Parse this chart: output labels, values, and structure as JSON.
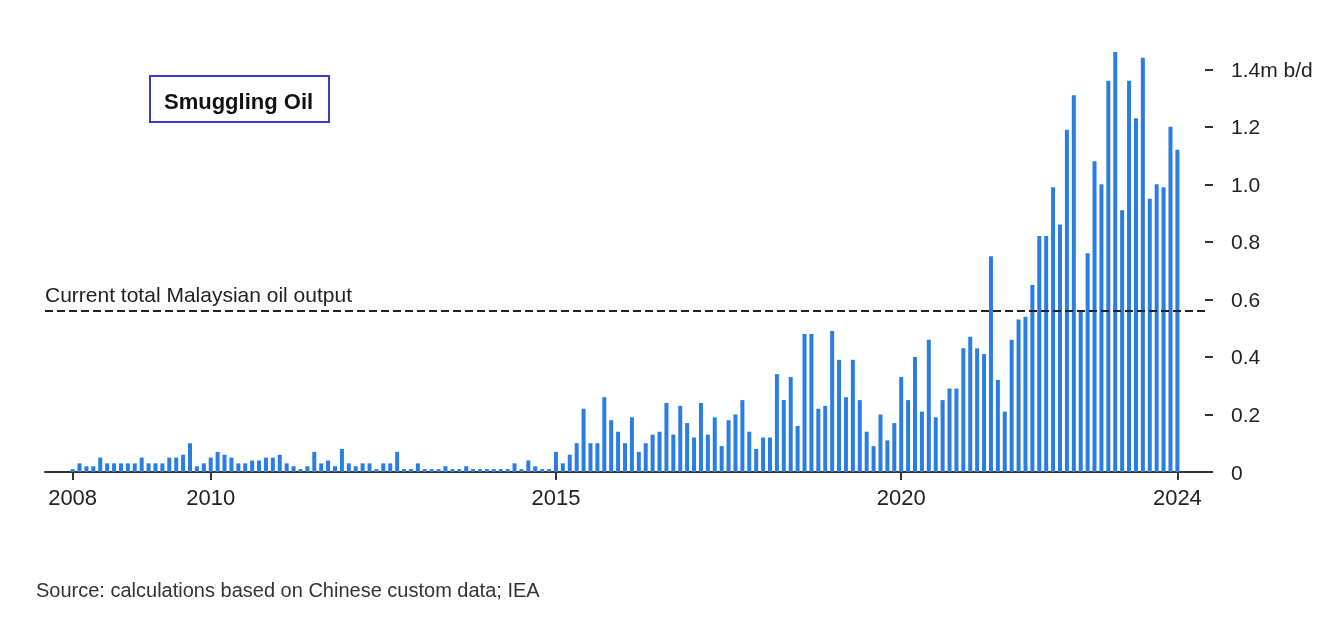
{
  "chart_data": {
    "type": "bar",
    "title": "Smuggling Oil",
    "annotations": [
      "Source: calculations based on Chinese custom data; IEA"
    ],
    "x": [
      2008,
      2008.1,
      2008.2,
      2008.3,
      2008.4,
      2008.5,
      2008.6,
      2008.7,
      2008.8,
      2008.9,
      2009,
      2009.1,
      2009.2,
      2009.3,
      2009.4,
      2009.5,
      2009.6,
      2009.7,
      2009.8,
      2009.9,
      2010,
      2010.1,
      2010.2,
      2010.3,
      2010.4,
      2010.5,
      2010.6,
      2010.7,
      2010.8,
      2010.9,
      2011,
      2011.1,
      2011.2,
      2011.3,
      2011.4,
      2011.5,
      2011.6,
      2011.7,
      2011.8,
      2011.9,
      2012,
      2012.1,
      2012.2,
      2012.3,
      2012.4,
      2012.5,
      2012.6,
      2012.7,
      2012.8,
      2012.9,
      2013,
      2013.1,
      2013.2,
      2013.3,
      2013.4,
      2013.5,
      2013.6,
      2013.7,
      2013.8,
      2013.9,
      2014,
      2014.1,
      2014.2,
      2014.3,
      2014.4,
      2014.5,
      2014.6,
      2014.7,
      2014.8,
      2014.9,
      2015,
      2015.1,
      2015.2,
      2015.3,
      2015.4,
      2015.5,
      2015.6,
      2015.7,
      2015.8,
      2015.9,
      2016,
      2016.1,
      2016.2,
      2016.3,
      2016.4,
      2016.5,
      2016.6,
      2016.7,
      2016.8,
      2016.9,
      2017,
      2017.1,
      2017.2,
      2017.3,
      2017.4,
      2017.5,
      2017.6,
      2017.7,
      2017.8,
      2017.9,
      2018,
      2018.1,
      2018.2,
      2018.3,
      2018.4,
      2018.5,
      2018.6,
      2018.7,
      2018.8,
      2018.9,
      2019,
      2019.1,
      2019.2,
      2019.3,
      2019.4,
      2019.5,
      2019.6,
      2019.7,
      2019.8,
      2019.9,
      2020,
      2020.1,
      2020.2,
      2020.3,
      2020.4,
      2020.5,
      2020.6,
      2020.7,
      2020.8,
      2020.9,
      2021,
      2021.1,
      2021.2,
      2021.3,
      2021.4,
      2021.5,
      2021.6,
      2021.7,
      2021.8,
      2021.9,
      2022,
      2022.1,
      2022.2,
      2022.3,
      2022.4,
      2022.5,
      2022.6,
      2022.7,
      2022.8,
      2022.9,
      2023,
      2023.1,
      2023.2,
      2023.3,
      2023.4,
      2023.5,
      2023.6,
      2023.7,
      2023.8,
      2023.9,
      2024
    ],
    "values": [
      0.01,
      0.03,
      0.02,
      0.02,
      0.05,
      0.03,
      0.03,
      0.03,
      0.03,
      0.03,
      0.05,
      0.03,
      0.03,
      0.03,
      0.05,
      0.05,
      0.06,
      0.1,
      0.02,
      0.03,
      0.05,
      0.07,
      0.06,
      0.05,
      0.03,
      0.03,
      0.04,
      0.04,
      0.05,
      0.05,
      0.06,
      0.03,
      0.02,
      0.01,
      0.02,
      0.07,
      0.03,
      0.04,
      0.02,
      0.08,
      0.03,
      0.02,
      0.03,
      0.03,
      0.01,
      0.03,
      0.03,
      0.07,
      0.01,
      0.01,
      0.03,
      0.01,
      0.01,
      0.01,
      0.02,
      0.01,
      0.01,
      0.02,
      0.01,
      0.01,
      0.01,
      0.01,
      0.01,
      0.01,
      0.03,
      0.01,
      0.04,
      0.02,
      0.01,
      0.01,
      0.07,
      0.03,
      0.06,
      0.1,
      0.22,
      0.1,
      0.1,
      0.26,
      0.18,
      0.14,
      0.1,
      0.19,
      0.07,
      0.1,
      0.13,
      0.14,
      0.24,
      0.13,
      0.23,
      0.17,
      0.12,
      0.24,
      0.13,
      0.19,
      0.09,
      0.18,
      0.2,
      0.25,
      0.14,
      0.08,
      0.12,
      0.12,
      0.34,
      0.25,
      0.33,
      0.16,
      0.48,
      0.48,
      0.22,
      0.23,
      0.49,
      0.39,
      0.26,
      0.39,
      0.25,
      0.14,
      0.09,
      0.2,
      0.11,
      0.17,
      0.33,
      0.25,
      0.4,
      0.21,
      0.46,
      0.19,
      0.25,
      0.29,
      0.29,
      0.43,
      0.47,
      0.43,
      0.41,
      0.75,
      0.32,
      0.21,
      0.46,
      0.53,
      0.54,
      0.65,
      0.82,
      0.82,
      0.99,
      0.86,
      1.19,
      1.31,
      0.56,
      0.76,
      1.08,
      1.0,
      1.36,
      1.46,
      0.91,
      1.36,
      1.23,
      1.44,
      0.95,
      1.0,
      0.99,
      1.2,
      1.12
    ],
    "color": "#2a7de1",
    "xlim": [
      2007.6,
      2024.4
    ],
    "xticks": [
      2008,
      2010,
      2015,
      2020,
      2024
    ],
    "ylim": [
      0,
      1.46
    ],
    "yticks": [
      0,
      0.2,
      0.4,
      0.6,
      0.8,
      {
        "value": 1.0,
        "label": "1.0"
      },
      1.2,
      {
        "value": 1.4,
        "label": "1.4m b/d"
      }
    ],
    "ref_lines": [
      {
        "axis": "y",
        "value": 0.56,
        "label": "Current total Malaysian oil output",
        "line_style": "dashed",
        "color": "#222222"
      }
    ],
    "grid": false
  }
}
